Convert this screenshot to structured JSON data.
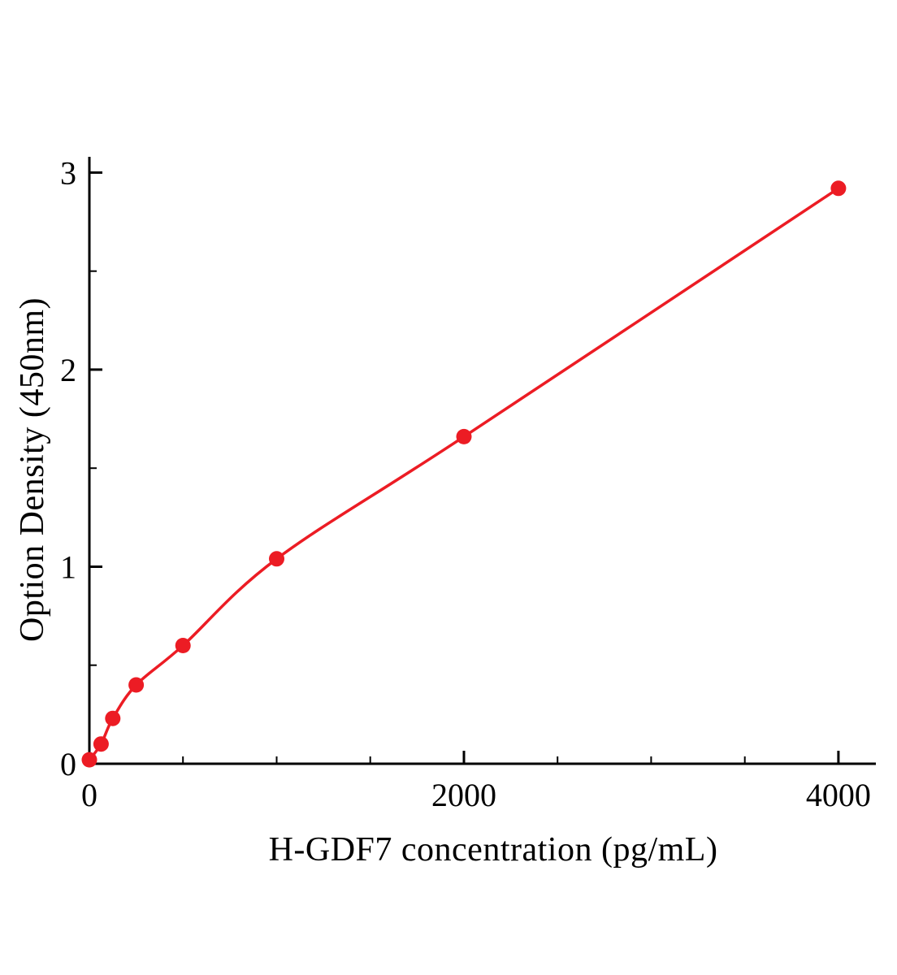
{
  "chart_data": {
    "type": "scatter",
    "curve": "smooth",
    "x": [
      0,
      62.5,
      125,
      250,
      500,
      1000,
      2000,
      4000
    ],
    "y": [
      0.02,
      0.1,
      0.23,
      0.4,
      0.6,
      1.04,
      1.66,
      2.92
    ],
    "title": "",
    "xlabel": "H-GDF7 concentration (pg/mL)",
    "ylabel": "Option Density (450nm)",
    "xlim": [
      0,
      4200
    ],
    "ylim": [
      0,
      3.08
    ],
    "x_major_ticks": [
      {
        "value": 0,
        "label": "0"
      },
      {
        "value": 2000,
        "label": "2000"
      },
      {
        "value": 4000,
        "label": "4000"
      }
    ],
    "y_major_ticks": [
      {
        "value": 0,
        "label": "0"
      },
      {
        "value": 1,
        "label": "1"
      },
      {
        "value": 2,
        "label": "2"
      },
      {
        "value": 3,
        "label": "3"
      }
    ],
    "x_minor_step": 500,
    "y_minor_step": 0.5,
    "grid": false,
    "legend": false,
    "line_color": "#ec1c24",
    "point_color": "#ec1c24",
    "axis_color": "#000000"
  }
}
